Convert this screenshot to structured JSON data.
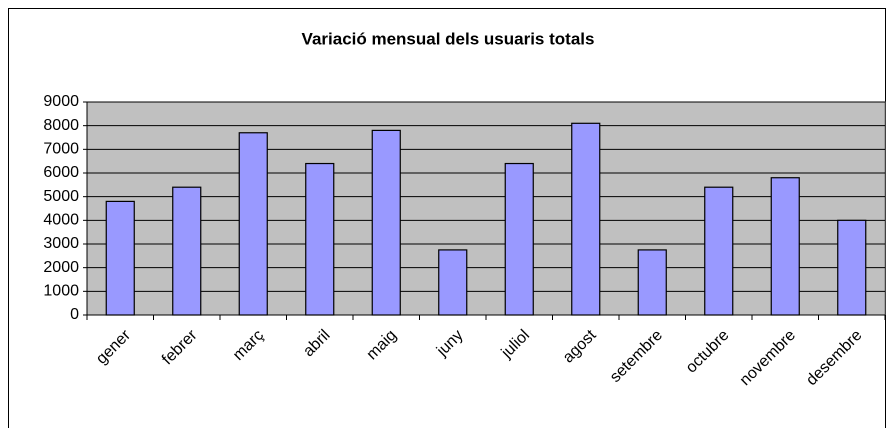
{
  "chart_data": {
    "type": "bar",
    "title": "Variació mensual dels usuaris totals",
    "categories": [
      "gener",
      "febrer",
      "març",
      "abril",
      "maig",
      "juny",
      "juliol",
      "agost",
      "setembre",
      "octubre",
      "novembre",
      "desembre"
    ],
    "values": [
      4800,
      5400,
      7700,
      6400,
      7800,
      2750,
      6400,
      8100,
      2750,
      5400,
      5800,
      4000
    ],
    "color": "#9999ff",
    "ylim": [
      0,
      9000
    ],
    "yticks": [
      0,
      1000,
      2000,
      3000,
      4000,
      5000,
      6000,
      7000,
      8000,
      9000
    ],
    "grid": true
  }
}
